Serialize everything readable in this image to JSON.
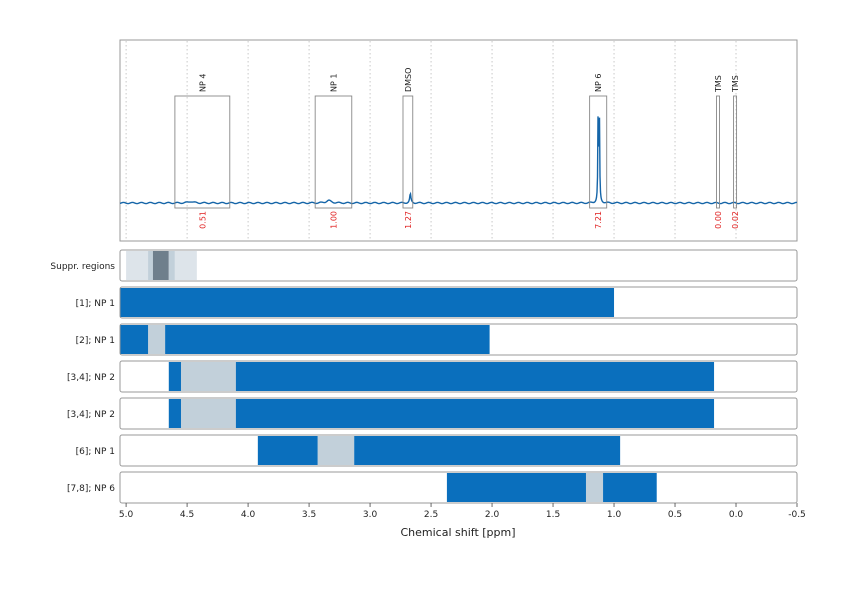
{
  "chart_data": {
    "type": "nmr-spectrum-with-range-bars",
    "xlabel": "Chemical shift [ppm]",
    "xlim": [
      5.05,
      -0.5
    ],
    "x_ticks": [
      {
        "value": 5.0,
        "label": "5.0"
      },
      {
        "value": 4.5,
        "label": "4.5"
      },
      {
        "value": 4.0,
        "label": "4.0"
      },
      {
        "value": 3.5,
        "label": "3.5"
      },
      {
        "value": 3.0,
        "label": "3.0"
      },
      {
        "value": 2.5,
        "label": "2.5"
      },
      {
        "value": 2.0,
        "label": "2.0"
      },
      {
        "value": 1.5,
        "label": "1.5"
      },
      {
        "value": 1.0,
        "label": "1.0"
      },
      {
        "value": 0.5,
        "label": "0.5"
      },
      {
        "value": 0.0,
        "label": "0.0"
      },
      {
        "value": -0.5,
        "label": "-0.5"
      }
    ],
    "spectrum": {
      "color": "#1565a8",
      "peaks": [
        {
          "ppm": 4.47,
          "height": 0.015,
          "width": 0.05
        },
        {
          "ppm": 3.34,
          "height": 0.025,
          "width": 0.05
        },
        {
          "ppm": 2.67,
          "height": 0.09,
          "width": 0.012
        },
        {
          "ppm": 1.13,
          "height": 0.98,
          "width": 0.006
        },
        {
          "ppm": 1.12,
          "height": 0.85,
          "width": 0.006
        }
      ]
    },
    "signal_regions": [
      {
        "label": "NP 4",
        "ppm_from": 4.6,
        "ppm_to": 4.15,
        "value": "0.51"
      },
      {
        "label": "NP 1",
        "ppm_from": 3.45,
        "ppm_to": 3.15,
        "value": "1.00"
      },
      {
        "label": "DMSO",
        "ppm_from": 2.73,
        "ppm_to": 2.65,
        "value": "1.27"
      },
      {
        "label": "NP 6",
        "ppm_from": 1.2,
        "ppm_to": 1.06,
        "value": "7.21"
      },
      {
        "label": "TMS",
        "ppm_from": 0.16,
        "ppm_to": 0.14,
        "value": "0.00"
      },
      {
        "label": "TMS",
        "ppm_from": 0.02,
        "ppm_to": 0.0,
        "value": "0.02"
      }
    ],
    "colors": {
      "bar": "#0a6fbd",
      "suppressed": "#c2d0da",
      "suppressed_light": "#dde4ea",
      "suppressed_dark": "#6f7f8c",
      "frame": "#999999",
      "grid": "#bbbbbb",
      "value_text": "#e02020"
    },
    "rows": [
      {
        "label": "Suppr. regions",
        "bars": [],
        "suppressed": [
          {
            "from": 5.0,
            "to": 4.82,
            "shade": "light"
          },
          {
            "from": 4.82,
            "to": 4.78,
            "shade": "mid"
          },
          {
            "from": 4.78,
            "to": 4.65,
            "shade": "dark"
          },
          {
            "from": 4.65,
            "to": 4.6,
            "shade": "mid"
          },
          {
            "from": 4.6,
            "to": 4.42,
            "shade": "light"
          }
        ]
      },
      {
        "label": "[1]; NP 1",
        "bars": [
          {
            "from": 5.05,
            "to": 1.0
          }
        ],
        "suppressed": []
      },
      {
        "label": "[2]; NP 1",
        "bars": [
          {
            "from": 5.05,
            "to": 4.82
          },
          {
            "from": 4.68,
            "to": 2.02
          }
        ],
        "suppressed": [
          {
            "from": 4.82,
            "to": 4.68,
            "shade": "mid"
          }
        ]
      },
      {
        "label": "[3,4]; NP 2",
        "bars": [
          {
            "from": 4.65,
            "to": 4.55
          },
          {
            "from": 4.1,
            "to": 0.18
          }
        ],
        "suppressed": [
          {
            "from": 4.55,
            "to": 4.1,
            "shade": "mid"
          }
        ]
      },
      {
        "label": "[3,4]; NP 2",
        "bars": [
          {
            "from": 4.65,
            "to": 4.55
          },
          {
            "from": 4.1,
            "to": 0.18
          }
        ],
        "suppressed": [
          {
            "from": 4.55,
            "to": 4.1,
            "shade": "mid"
          }
        ]
      },
      {
        "label": "[6]; NP 1",
        "bars": [
          {
            "from": 3.92,
            "to": 3.43
          },
          {
            "from": 3.13,
            "to": 0.95
          }
        ],
        "suppressed": [
          {
            "from": 3.43,
            "to": 3.13,
            "shade": "mid"
          }
        ]
      },
      {
        "label": "[7,8]; NP 6",
        "bars": [
          {
            "from": 2.37,
            "to": 1.23
          },
          {
            "from": 1.09,
            "to": 0.65
          }
        ],
        "suppressed": [
          {
            "from": 1.23,
            "to": 1.09,
            "shade": "mid"
          }
        ]
      }
    ]
  }
}
